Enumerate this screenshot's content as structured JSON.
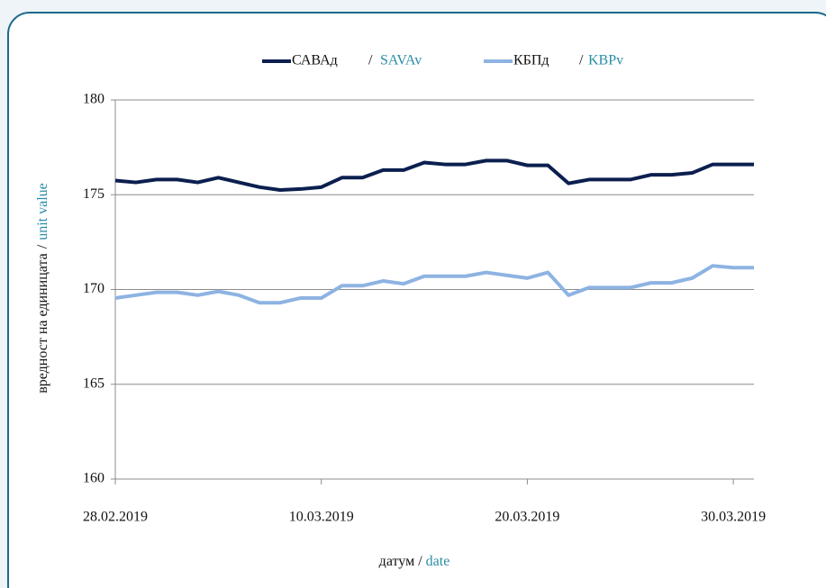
{
  "chart_data": {
    "type": "line",
    "categories": [
      "28.02.2019",
      null,
      null,
      null,
      null,
      null,
      null,
      null,
      null,
      null,
      "10.03.2019",
      null,
      null,
      null,
      null,
      null,
      null,
      null,
      null,
      null,
      "20.03.2019",
      null,
      null,
      null,
      null,
      null,
      null,
      null,
      null,
      null,
      "30.03.2019",
      null
    ],
    "series": [
      {
        "name": "САВАд",
        "name_en": "SAVAv",
        "color": "#0b1f4f",
        "values": [
          175.75,
          175.65,
          175.8,
          175.8,
          175.65,
          175.9,
          175.65,
          175.4,
          175.25,
          175.3,
          175.4,
          175.9,
          175.9,
          176.3,
          176.3,
          176.7,
          176.6,
          176.6,
          176.8,
          176.8,
          176.55,
          176.55,
          175.6,
          175.8,
          175.8,
          175.8,
          176.05,
          176.05,
          176.15,
          176.6,
          176.6,
          176.6
        ]
      },
      {
        "name": "КБПд",
        "name_en": "KBPv",
        "color": "#8db3e2",
        "values": [
          169.55,
          169.7,
          169.85,
          169.85,
          169.7,
          169.9,
          169.7,
          169.3,
          169.3,
          169.55,
          169.55,
          170.2,
          170.2,
          170.45,
          170.3,
          170.7,
          170.7,
          170.7,
          170.9,
          170.75,
          170.6,
          170.9,
          169.7,
          170.1,
          170.1,
          170.1,
          170.35,
          170.35,
          170.6,
          171.25,
          171.15,
          171.15
        ]
      }
    ],
    "separator": "/",
    "y_label": "вредност на единицата",
    "y_label_en": "unit value",
    "x_label": "датум",
    "x_label_en": "date",
    "ylim": [
      160,
      180
    ],
    "yticks": [
      160,
      165,
      170,
      175,
      180
    ],
    "grid": true
  }
}
